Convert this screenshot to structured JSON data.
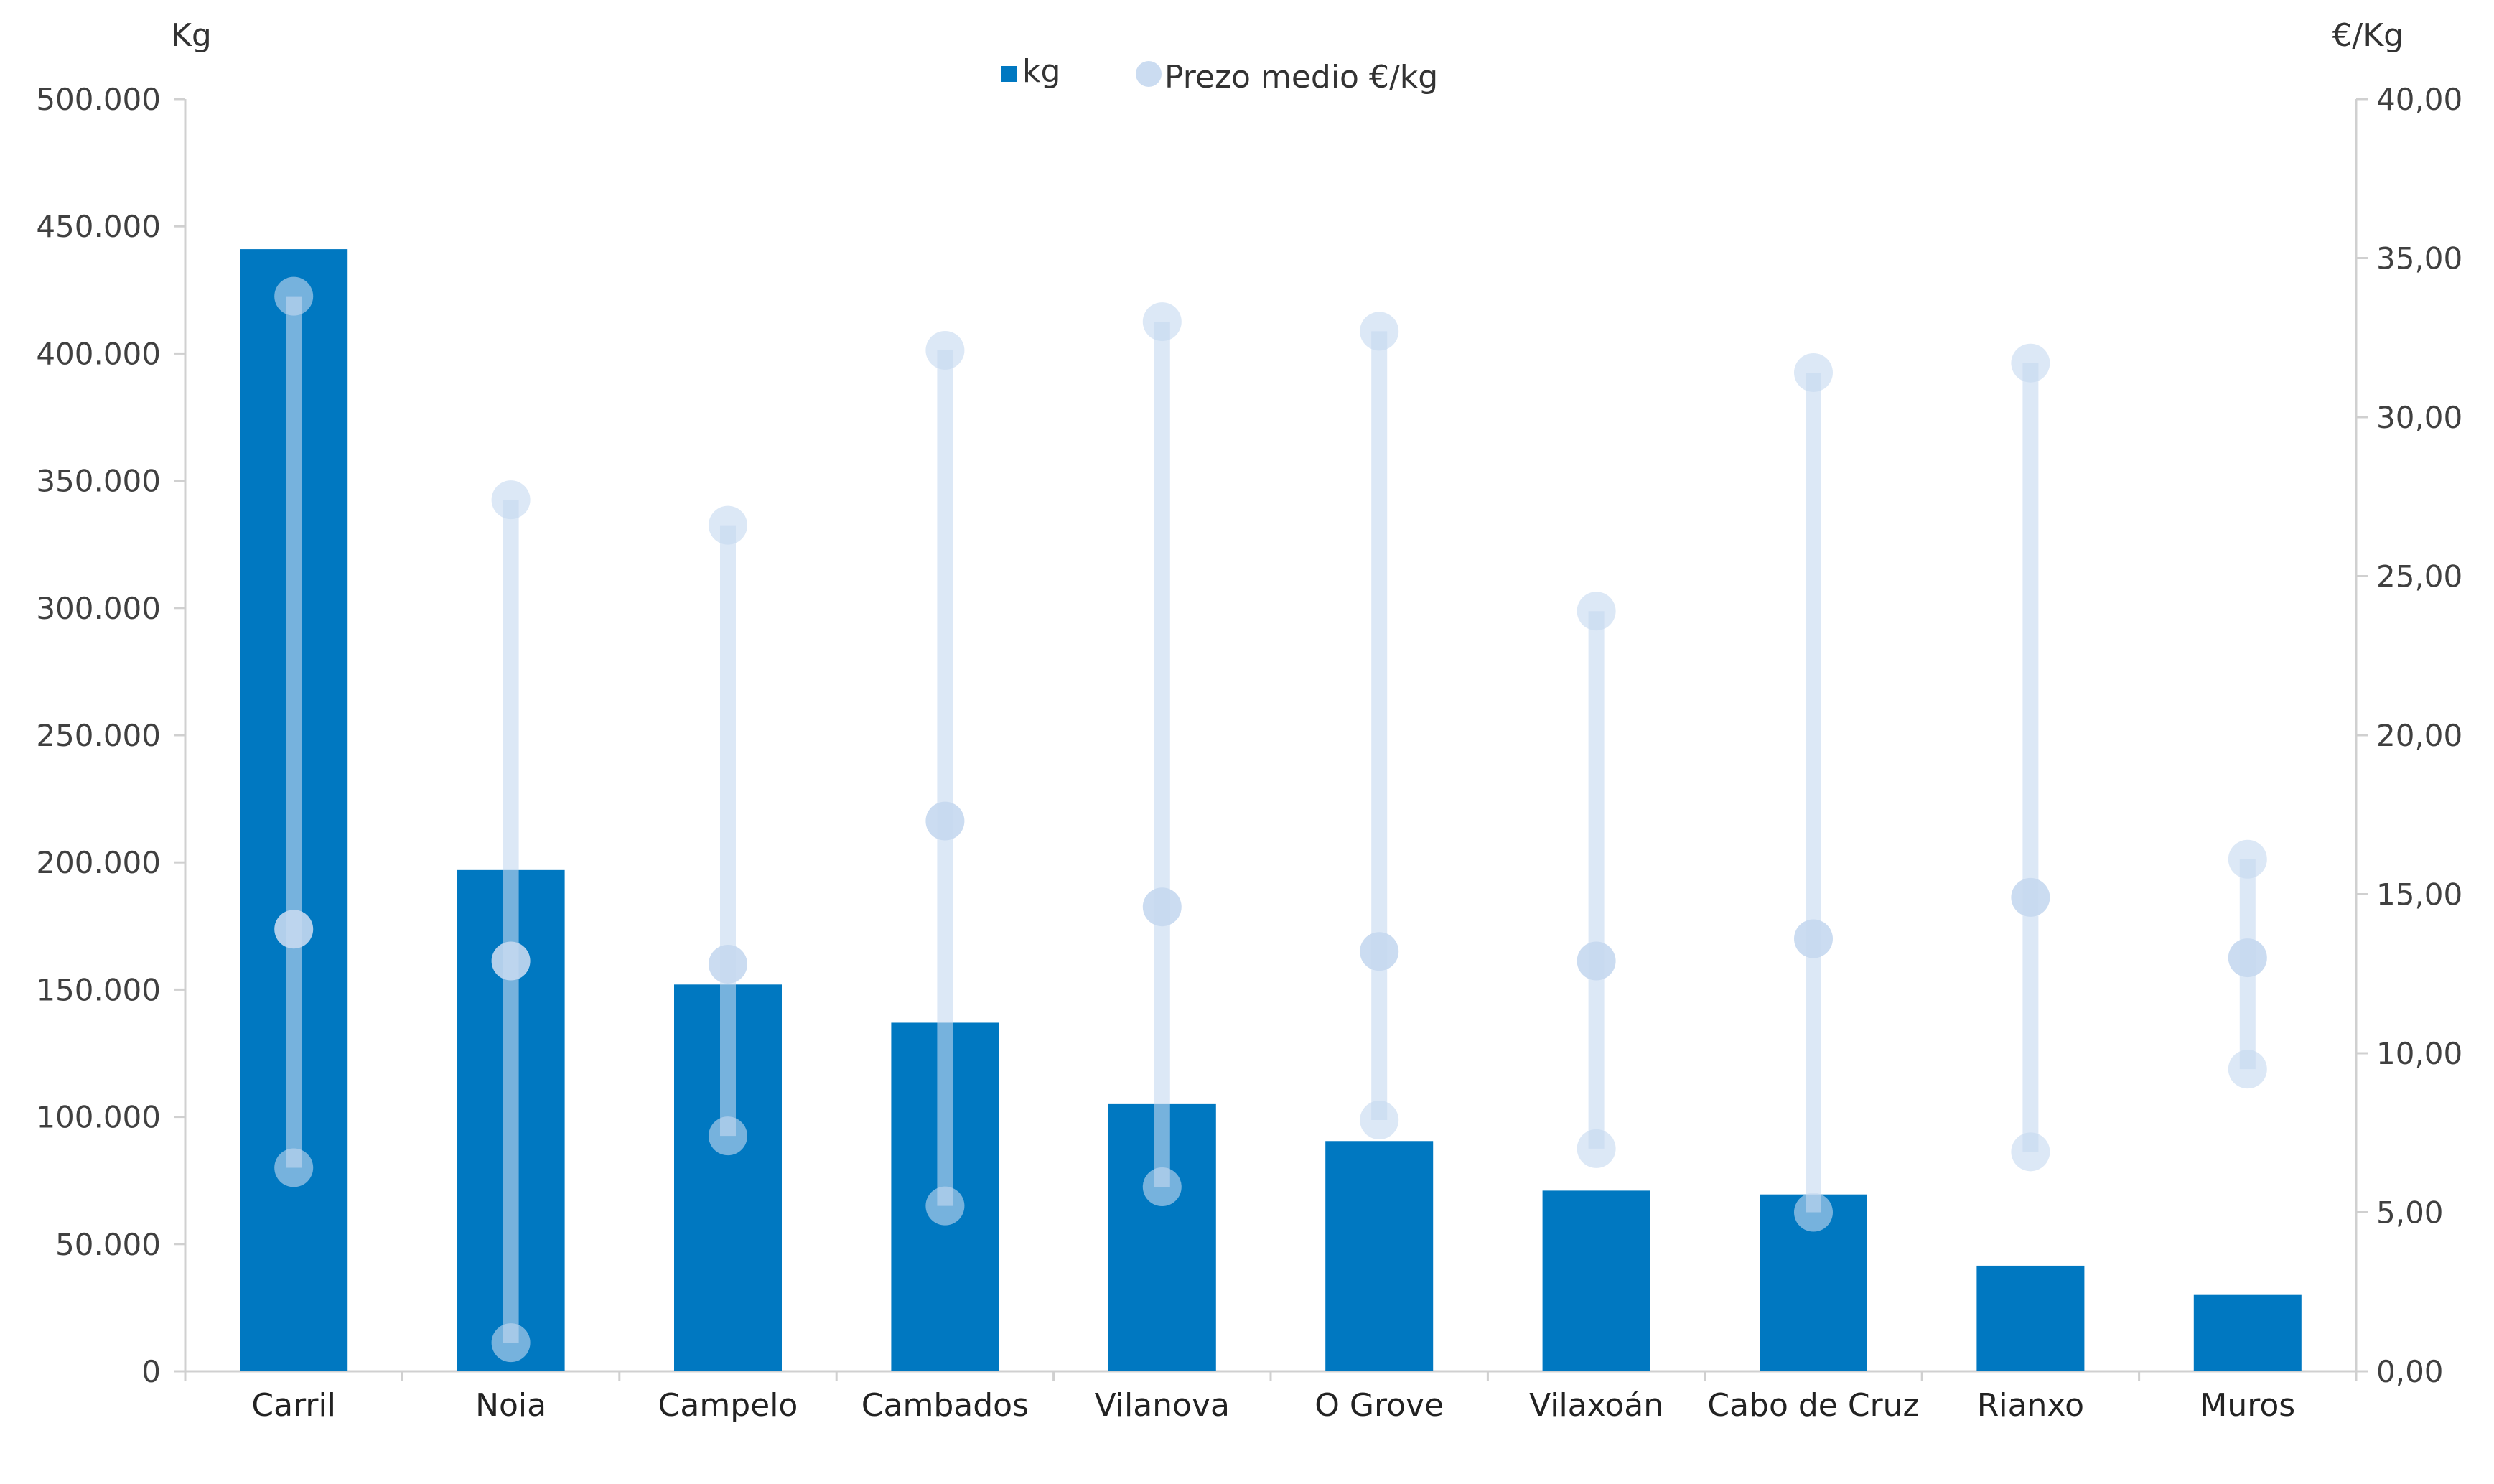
{
  "chart_data": {
    "type": "bar",
    "categories": [
      "Carril",
      "Noia",
      "Campelo",
      "Cambados",
      "Vilanova",
      "O Grove",
      "Vilaxoán",
      "Cabo de Cruz",
      "Rianxo",
      "Muros"
    ],
    "left_axis": {
      "unit_label": "Kg",
      "range": [
        0,
        500000
      ],
      "tick_labels": [
        "0",
        "50.000",
        "100.000",
        "150.000",
        "200.000",
        "250.000",
        "300.000",
        "350.000",
        "400.000",
        "450.000",
        "500.000"
      ],
      "tick_values": [
        0,
        50000,
        100000,
        150000,
        200000,
        250000,
        300000,
        350000,
        400000,
        450000,
        500000
      ]
    },
    "right_axis": {
      "unit_label": "€/Kg",
      "range": [
        0,
        40
      ],
      "tick_labels": [
        "0,00",
        "5,00",
        "10,00",
        "15,00",
        "20,00",
        "25,00",
        "30,00",
        "35,00",
        "40,00"
      ],
      "tick_values": [
        0,
        5,
        10,
        15,
        20,
        25,
        30,
        35,
        40
      ]
    },
    "series": [
      {
        "name": "kg",
        "type": "bar",
        "axis": "left",
        "color": "#0078C1",
        "values": [
          441000,
          197000,
          152000,
          137000,
          105000,
          90500,
          71000,
          69500,
          41500,
          30000
        ]
      },
      {
        "name": "Prezo medio €/kg",
        "type": "range-dot",
        "axis": "right",
        "color": "#C5D8F0",
        "min": [
          6.4,
          0.9,
          7.4,
          5.2,
          5.8,
          7.9,
          7.0,
          5.0,
          6.9,
          9.5
        ],
        "mean": [
          13.9,
          12.9,
          12.8,
          17.3,
          14.6,
          13.2,
          12.9,
          13.6,
          14.9,
          13.0
        ],
        "max": [
          33.8,
          27.4,
          26.6,
          32.1,
          33.0,
          32.7,
          23.9,
          31.4,
          31.7,
          16.1
        ]
      }
    ],
    "legend_position": "top-center",
    "grid": false
  }
}
